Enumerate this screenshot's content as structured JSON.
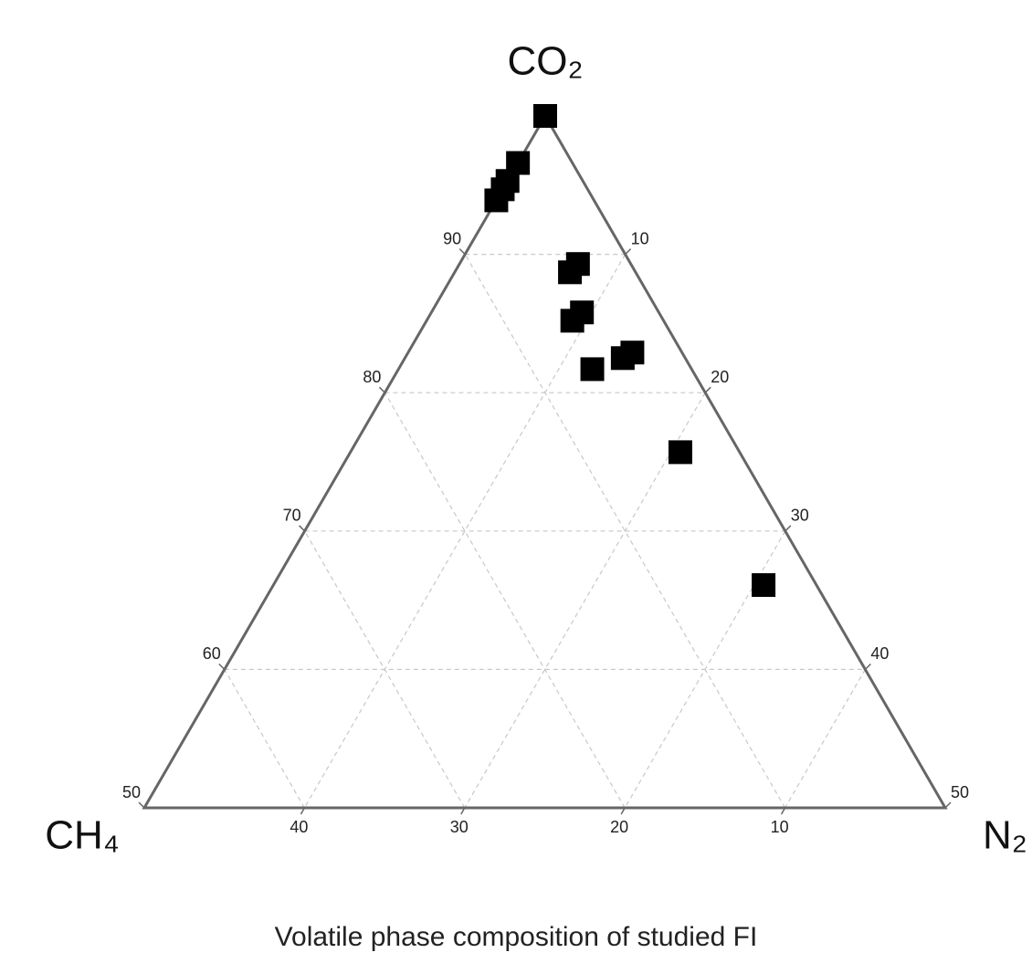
{
  "chart_data": {
    "type": "ternary",
    "title": "Volatile phase composition of studied FI",
    "vertices": {
      "top": "CO₂",
      "left": "CH₄",
      "right": "N₂"
    },
    "co2_lim": [
      50,
      100
    ],
    "n2_lim": [
      0,
      50
    ],
    "ch4_lim": [
      0,
      50
    ],
    "co2_ticks": [
      50,
      60,
      70,
      80,
      90
    ],
    "n2_ticks": [
      10,
      20,
      30,
      40,
      50
    ],
    "ch4_ticks": [
      10,
      20,
      30,
      40
    ],
    "grid": true,
    "series": [
      {
        "color": "#000000",
        "co2": [
          100,
          96.6,
          95.3,
          94.7,
          93.9,
          89.3,
          88.7,
          85.8,
          85.2,
          82.9,
          82.5,
          81.7,
          75.7,
          66.1
        ],
        "n2": [
          0,
          0,
          0,
          0,
          0,
          7.4,
          7.2,
          9.4,
          9.1,
          14.0,
          13.6,
          12.1,
          20.6,
          30.6
        ],
        "ch4": [
          0,
          3.4,
          4.7,
          5.3,
          6.1,
          3.3,
          4.1,
          4.8,
          5.7,
          3.1,
          3.9,
          6.2,
          3.7,
          3.3
        ]
      }
    ]
  }
}
